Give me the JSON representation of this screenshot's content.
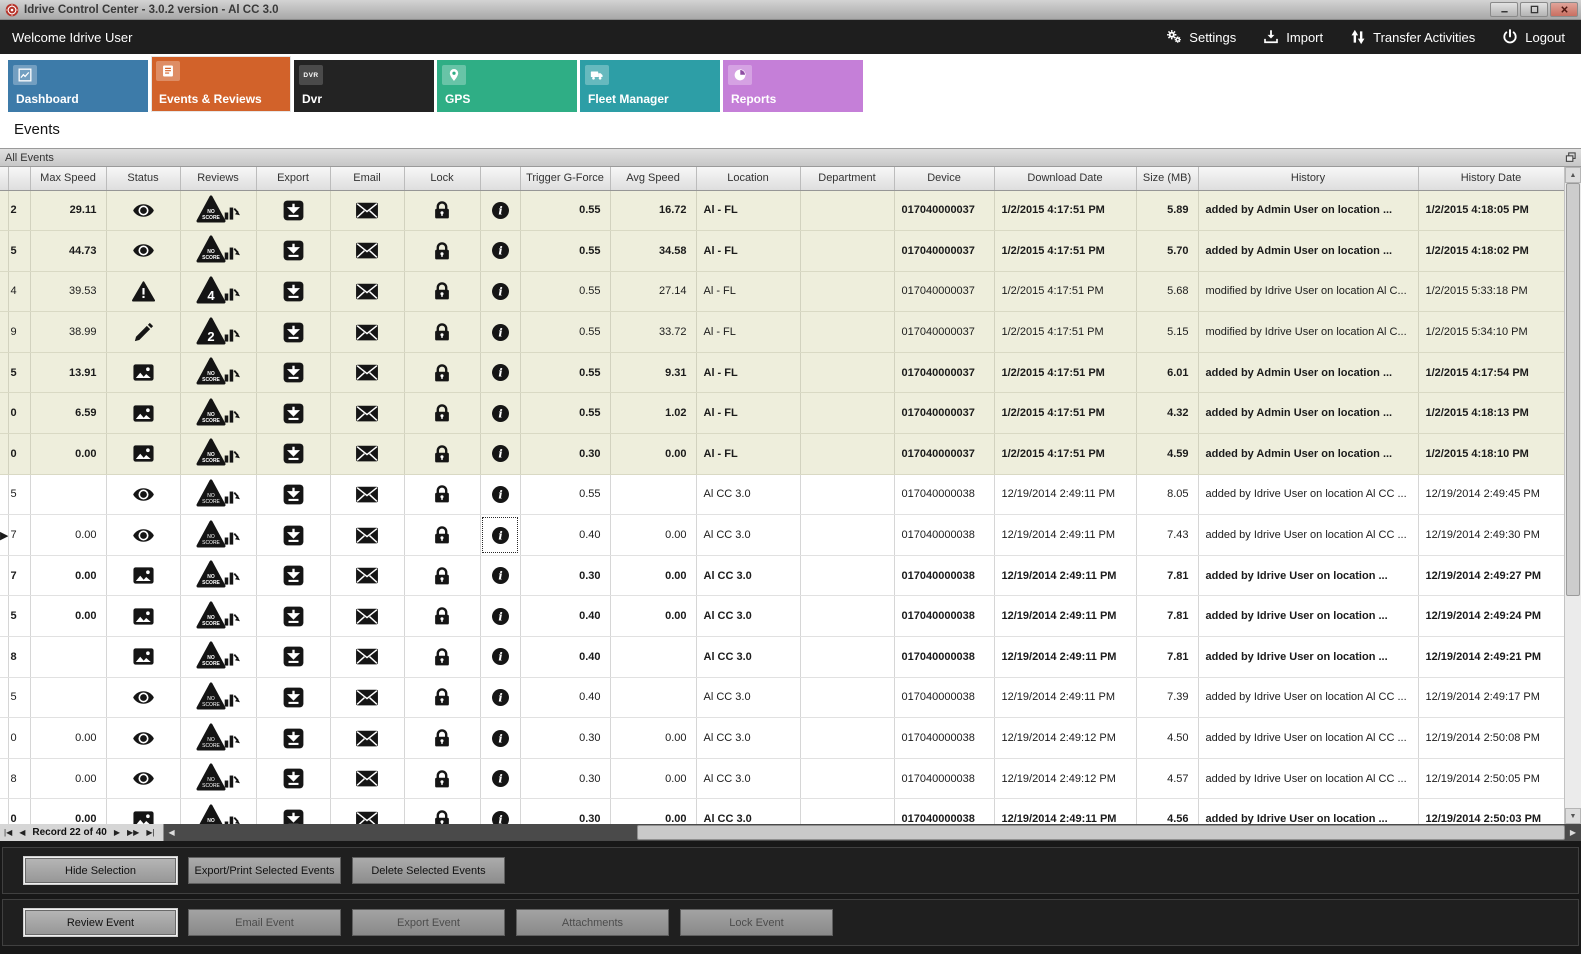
{
  "window": {
    "title": "Idrive Control Center - 3.0.2 version - Al CC 3.0"
  },
  "menubar": {
    "welcome": "Welcome Idrive User",
    "actions": [
      {
        "label": "Settings",
        "icon": "gears-icon"
      },
      {
        "label": "Import",
        "icon": "import-icon"
      },
      {
        "label": "Transfer Activities",
        "icon": "transfer-arrows-icon"
      },
      {
        "label": "Logout",
        "icon": "power-icon"
      }
    ]
  },
  "tabs": [
    {
      "label": "Dashboard",
      "color": "#3d7ba9",
      "icon": "line-chart-icon",
      "active": false
    },
    {
      "label": "Events & Reviews",
      "color": "#d2622a",
      "icon": "event-list-icon",
      "active": true
    },
    {
      "label": "Dvr",
      "color": "#232323",
      "icon": "dvr-icon",
      "active": false
    },
    {
      "label": "GPS",
      "color": "#2fae85",
      "icon": "map-pin-icon",
      "active": false
    },
    {
      "label": "Fleet Manager",
      "color": "#2d9ea6",
      "icon": "truck-icon",
      "active": false
    },
    {
      "label": "Reports",
      "color": "#c57fd8",
      "icon": "pie-chart-icon",
      "active": false
    }
  ],
  "page_title": "Events",
  "panel": {
    "title": "All Events"
  },
  "grid": {
    "columns": [
      "",
      "",
      "Max Speed",
      "Status",
      "Reviews",
      "Export",
      "Email",
      "Lock",
      "",
      "Trigger G-Force",
      "Avg Speed",
      "Location",
      "Department",
      "Device",
      "Download Date",
      "Size (MB)",
      "History",
      "History Date"
    ],
    "rows": [
      {
        "edge": "2",
        "max_speed": "29.11",
        "status": "eye",
        "review": "NO SCORE",
        "trigger": "0.55",
        "avg_speed": "16.72",
        "location": "Al - FL",
        "department": "",
        "device": "017040000037",
        "download": "1/2/2015 4:17:51 PM",
        "size": "5.89",
        "history": "added by Admin User on location ...",
        "history_date": "1/2/2015 4:18:05 PM",
        "tone": "beige",
        "bold": true,
        "selected": false
      },
      {
        "edge": "5",
        "max_speed": "44.73",
        "status": "eye",
        "review": "NO SCORE",
        "trigger": "0.55",
        "avg_speed": "34.58",
        "location": "Al - FL",
        "department": "",
        "device": "017040000037",
        "download": "1/2/2015 4:17:51 PM",
        "size": "5.70",
        "history": "added by Admin User on location ...",
        "history_date": "1/2/2015 4:18:02 PM",
        "tone": "beige",
        "bold": true,
        "selected": false
      },
      {
        "edge": "4",
        "max_speed": "39.53",
        "status": "warning",
        "review": "4",
        "trigger": "0.55",
        "avg_speed": "27.14",
        "location": "Al - FL",
        "department": "",
        "device": "017040000037",
        "download": "1/2/2015 4:17:51 PM",
        "size": "5.68",
        "history": "modified by Idrive User on location Al C...",
        "history_date": "1/2/2015 5:33:18 PM",
        "tone": "beige",
        "bold": false,
        "selected": false
      },
      {
        "edge": "9",
        "max_speed": "38.99",
        "status": "pencil",
        "review": "2",
        "trigger": "0.55",
        "avg_speed": "33.72",
        "location": "Al - FL",
        "department": "",
        "device": "017040000037",
        "download": "1/2/2015 4:17:51 PM",
        "size": "5.15",
        "history": "modified by Idrive User on location Al C...",
        "history_date": "1/2/2015 5:34:10 PM",
        "tone": "beige",
        "bold": false,
        "selected": false
      },
      {
        "edge": "5",
        "max_speed": "13.91",
        "status": "image",
        "review": "NO SCORE",
        "trigger": "0.55",
        "avg_speed": "9.31",
        "location": "Al - FL",
        "department": "",
        "device": "017040000037",
        "download": "1/2/2015 4:17:51 PM",
        "size": "6.01",
        "history": "added by Admin User on location ...",
        "history_date": "1/2/2015 4:17:54 PM",
        "tone": "beige",
        "bold": true,
        "selected": false
      },
      {
        "edge": "0",
        "max_speed": "6.59",
        "status": "image",
        "review": "NO SCORE",
        "trigger": "0.55",
        "avg_speed": "1.02",
        "location": "Al - FL",
        "department": "",
        "device": "017040000037",
        "download": "1/2/2015 4:17:51 PM",
        "size": "4.32",
        "history": "added by Admin User on location ...",
        "history_date": "1/2/2015 4:18:13 PM",
        "tone": "beige",
        "bold": true,
        "selected": false
      },
      {
        "edge": "0",
        "max_speed": "0.00",
        "status": "image",
        "review": "NO SCORE",
        "trigger": "0.30",
        "avg_speed": "0.00",
        "location": "Al - FL",
        "department": "",
        "device": "017040000037",
        "download": "1/2/2015 4:17:51 PM",
        "size": "4.59",
        "history": "added by Admin User on location ...",
        "history_date": "1/2/2015 4:18:10 PM",
        "tone": "beige",
        "bold": true,
        "selected": false
      },
      {
        "edge": "5",
        "max_speed": "",
        "status": "eye",
        "review": "NO SCORE",
        "trigger": "0.55",
        "avg_speed": "",
        "location": "Al CC 3.0",
        "department": "",
        "device": "017040000038",
        "download": "12/19/2014 2:49:11 PM",
        "size": "8.05",
        "history": "added by Idrive User on location Al CC ...",
        "history_date": "12/19/2014 2:49:45 PM",
        "tone": "white",
        "bold": false,
        "selected": false
      },
      {
        "edge": "7",
        "max_speed": "0.00",
        "status": "eye",
        "review": "NO SCORE",
        "trigger": "0.40",
        "avg_speed": "0.00",
        "location": "Al CC 3.0",
        "department": "",
        "device": "017040000038",
        "download": "12/19/2014 2:49:11 PM",
        "size": "7.43",
        "history": "added by Idrive User on location Al CC ...",
        "history_date": "12/19/2014 2:49:30 PM",
        "tone": "white",
        "bold": false,
        "selected": true
      },
      {
        "edge": "7",
        "max_speed": "0.00",
        "status": "image",
        "review": "NO SCORE",
        "trigger": "0.30",
        "avg_speed": "0.00",
        "location": "Al CC 3.0",
        "department": "",
        "device": "017040000038",
        "download": "12/19/2014 2:49:11 PM",
        "size": "7.81",
        "history": "added by Idrive User on location ...",
        "history_date": "12/19/2014 2:49:27 PM",
        "tone": "white",
        "bold": true,
        "selected": false
      },
      {
        "edge": "5",
        "max_speed": "0.00",
        "status": "image",
        "review": "NO SCORE",
        "trigger": "0.40",
        "avg_speed": "0.00",
        "location": "Al CC 3.0",
        "department": "",
        "device": "017040000038",
        "download": "12/19/2014 2:49:11 PM",
        "size": "7.81",
        "history": "added by Idrive User on location ...",
        "history_date": "12/19/2014 2:49:24 PM",
        "tone": "white",
        "bold": true,
        "selected": false
      },
      {
        "edge": "8",
        "max_speed": "",
        "status": "image",
        "review": "NO SCORE",
        "trigger": "0.40",
        "avg_speed": "",
        "location": "Al CC 3.0",
        "department": "",
        "device": "017040000038",
        "download": "12/19/2014 2:49:11 PM",
        "size": "7.81",
        "history": "added by Idrive User on location ...",
        "history_date": "12/19/2014 2:49:21 PM",
        "tone": "white",
        "bold": true,
        "selected": false
      },
      {
        "edge": "5",
        "max_speed": "",
        "status": "eye",
        "review": "NO SCORE",
        "trigger": "0.40",
        "avg_speed": "",
        "location": "Al CC 3.0",
        "department": "",
        "device": "017040000038",
        "download": "12/19/2014 2:49:11 PM",
        "size": "7.39",
        "history": "added by Idrive User on location Al CC ...",
        "history_date": "12/19/2014 2:49:17 PM",
        "tone": "white",
        "bold": false,
        "selected": false
      },
      {
        "edge": "0",
        "max_speed": "0.00",
        "status": "eye",
        "review": "NO SCORE",
        "trigger": "0.30",
        "avg_speed": "0.00",
        "location": "Al CC 3.0",
        "department": "",
        "device": "017040000038",
        "download": "12/19/2014 2:49:12 PM",
        "size": "4.50",
        "history": "added by Idrive User on location Al CC ...",
        "history_date": "12/19/2014 2:50:08 PM",
        "tone": "white",
        "bold": false,
        "selected": false
      },
      {
        "edge": "8",
        "max_speed": "0.00",
        "status": "eye",
        "review": "NO SCORE",
        "trigger": "0.30",
        "avg_speed": "0.00",
        "location": "Al CC 3.0",
        "department": "",
        "device": "017040000038",
        "download": "12/19/2014 2:49:12 PM",
        "size": "4.57",
        "history": "added by Idrive User on location Al CC ...",
        "history_date": "12/19/2014 2:50:05 PM",
        "tone": "white",
        "bold": false,
        "selected": false
      },
      {
        "edge": "0",
        "max_speed": "0.00",
        "status": "image",
        "review": "NO SCORE",
        "trigger": "0.30",
        "avg_speed": "0.00",
        "location": "Al CC 3.0",
        "department": "",
        "device": "017040000038",
        "download": "12/19/2014 2:49:11 PM",
        "size": "4.56",
        "history": "added by Idrive User on location ...",
        "history_date": "12/19/2014 2:50:03 PM",
        "tone": "white",
        "bold": true,
        "selected": false
      }
    ]
  },
  "navigator": {
    "record_text": "Record 22 of 40",
    "icons": {
      "first": "|◀",
      "prev": "◀",
      "next": "▶",
      "next_page": "▶▶",
      "last": "▶|",
      "scroll_left": "◀",
      "scroll_right": "▶",
      "scroll_up": "▲",
      "scroll_down": "▼"
    }
  },
  "action_panels": {
    "selection": [
      "Hide Selection",
      "Export/Print Selected Events",
      "Delete Selected  Events"
    ],
    "event": [
      "Review Event",
      "Email Event",
      "Export Event",
      "Attachments",
      "Lock Event"
    ]
  }
}
